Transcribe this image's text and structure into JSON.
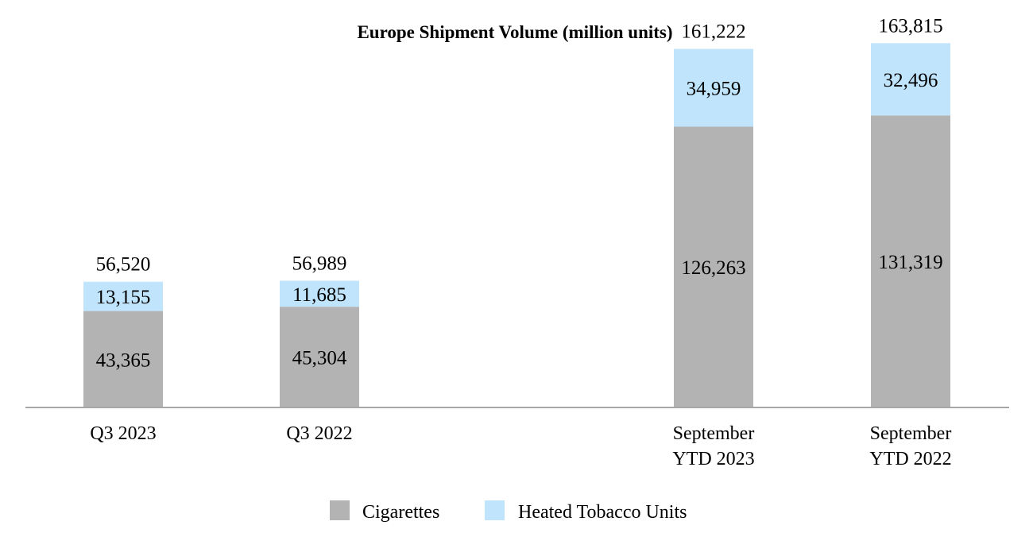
{
  "chart_data": {
    "type": "bar",
    "stacked": true,
    "title": "Europe Shipment Volume (million units)",
    "xlabel": "",
    "ylabel": "",
    "ylim": [
      0,
      170000
    ],
    "grid": false,
    "legend_position": "bottom-center",
    "categories": [
      [
        "Q3 2023"
      ],
      [
        "Q3 2022"
      ],
      [
        "September",
        "YTD 2023"
      ],
      [
        "September",
        "YTD 2022"
      ]
    ],
    "series": [
      {
        "name": "Cigarettes",
        "color": "#b3b3b3",
        "values": [
          43365,
          45304,
          126263,
          131319
        ],
        "labels": [
          "43,365",
          "45,304",
          "126,263",
          "131,319"
        ]
      },
      {
        "name": "Heated Tobacco Units",
        "color": "#bfe4fb",
        "values": [
          13155,
          11685,
          34959,
          32496
        ],
        "labels": [
          "13,155",
          "11,685",
          "34,959",
          "32,496"
        ]
      }
    ],
    "totals": [
      56520,
      56989,
      161222,
      163815
    ],
    "total_labels": [
      "56,520",
      "56,989",
      "161,222",
      "163,815"
    ],
    "axis_color": "#a6a6a6"
  }
}
